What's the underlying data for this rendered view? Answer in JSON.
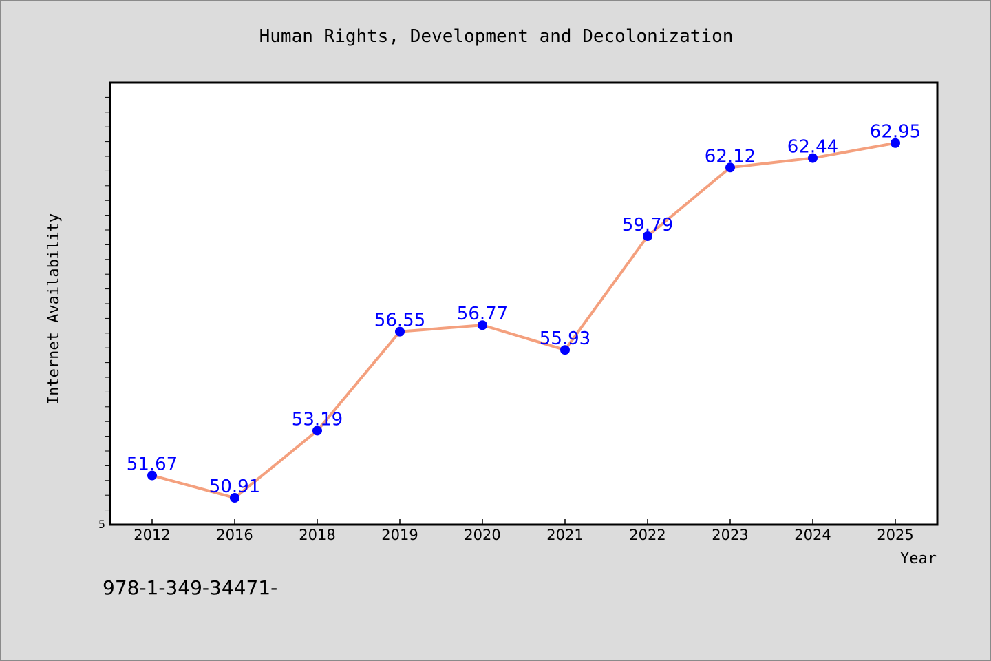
{
  "chart_data": {
    "type": "line",
    "title": "Human Rights, Development and Decolonization",
    "xlabel": "Year",
    "ylabel": "Internet Availability",
    "categories": [
      "2012",
      "2016",
      "2018",
      "2019",
      "2020",
      "2021",
      "2022",
      "2023",
      "2024",
      "2025"
    ],
    "series": [
      {
        "values": [
          51.67,
          50.91,
          53.19,
          56.55,
          56.77,
          55.93,
          59.79,
          62.12,
          62.44,
          62.95
        ]
      }
    ],
    "data_labels": [
      "51.67",
      "50.91",
      "53.19",
      "56.55",
      "56.77",
      "55.93",
      "59.79",
      "62.12",
      "62.44",
      "62.95"
    ],
    "y_tick_label": "5",
    "ylim": [
      50.0,
      65.0
    ],
    "grid": false,
    "legend": "none",
    "colors": {
      "line": "#f4a07e",
      "marker": "#0000ff",
      "data_label": "#0000ff",
      "background": "#dcdcdc",
      "plot_background": "#ffffff"
    },
    "footnote": "978-1-349-34471-"
  }
}
